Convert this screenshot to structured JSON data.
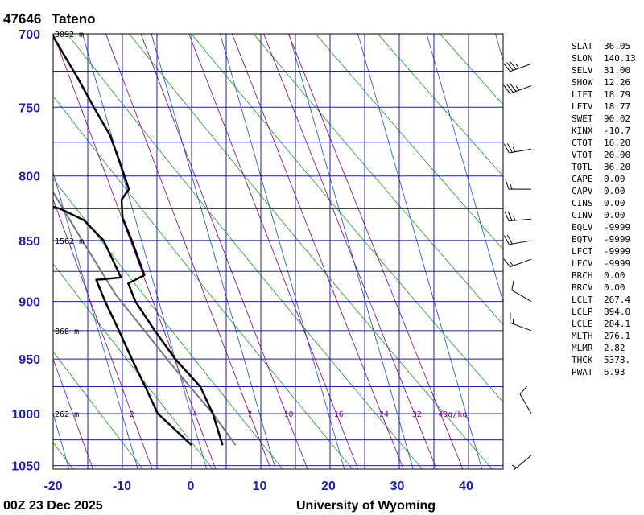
{
  "header": {
    "station": "47646",
    "name": "Tateno"
  },
  "footer": {
    "time": "00Z 23 Dec 2025",
    "source": "University of Wyoming"
  },
  "chart_data": {
    "type": "skew-t log-p",
    "pressure_range": [
      1050,
      700
    ],
    "temperature_range": [
      -20,
      45
    ],
    "pressure_ticks": [
      700,
      750,
      800,
      850,
      900,
      950,
      1000,
      1050
    ],
    "temperature_ticks": [
      -20,
      -10,
      0,
      10,
      20,
      30,
      40
    ],
    "height_labels": [
      {
        "p": 1000,
        "label": "262 m"
      },
      {
        "p": 925,
        "label": "868 m"
      },
      {
        "p": 850,
        "label": "1562 m"
      },
      {
        "p": 700,
        "label": "3092 m"
      }
    ],
    "mixing_ratio_labels": [
      "2",
      "4",
      "7",
      "10",
      "16",
      "24",
      "32",
      "40g/kg"
    ],
    "temperature_profile": [
      {
        "p": 1030,
        "t": 3.3
      },
      {
        "p": 1000,
        "t": 3.2
      },
      {
        "p": 975,
        "t": 2.5
      },
      {
        "p": 950,
        "t": 0.0
      },
      {
        "p": 925,
        "t": -1.8
      },
      {
        "p": 900,
        "t": -3.4
      },
      {
        "p": 885,
        "t": -3.7
      },
      {
        "p": 878,
        "t": -1.0
      },
      {
        "p": 850,
        "t": -1.4
      },
      {
        "p": 832,
        "t": -1.8
      },
      {
        "p": 818,
        "t": -1.2
      },
      {
        "p": 810,
        "t": 0.3
      },
      {
        "p": 790,
        "t": 0.1
      },
      {
        "p": 770,
        "t": -0.2
      },
      {
        "p": 750,
        "t": -1.4
      },
      {
        "p": 730,
        "t": -2.5
      },
      {
        "p": 700,
        "t": -4.5
      }
    ],
    "dewpoint_profile": [
      {
        "p": 1030,
        "t": -1.2
      },
      {
        "p": 1000,
        "t": -4.8
      },
      {
        "p": 975,
        "t": -5.5
      },
      {
        "p": 950,
        "t": -6.3
      },
      {
        "p": 925,
        "t": -7.0
      },
      {
        "p": 900,
        "t": -7.8
      },
      {
        "p": 882,
        "t": -8.2
      },
      {
        "p": 880,
        "t": -4.5
      },
      {
        "p": 850,
        "t": -5.5
      },
      {
        "p": 834,
        "t": -7.5
      },
      {
        "p": 825,
        "t": -10.5
      },
      {
        "p": 818,
        "t": -14.5
      },
      {
        "p": 815,
        "t": -20.0
      }
    ],
    "parcel_path": [
      {
        "p": 1030,
        "t": 5.2
      },
      {
        "p": 1000,
        "t": 3.2
      },
      {
        "p": 975,
        "t": 1.0
      },
      {
        "p": 950,
        "t": -1.2
      },
      {
        "p": 925,
        "t": -3.3
      },
      {
        "p": 894,
        "t": -6.0
      },
      {
        "p": 850,
        "t": -8.6
      },
      {
        "p": 800,
        "t": -11.6
      },
      {
        "p": 750,
        "t": -15.0
      },
      {
        "p": 700,
        "t": -18.8
      }
    ],
    "wind_barbs": [
      {
        "p": 1040,
        "dir": 230,
        "kt": 5
      },
      {
        "p": 1000,
        "dir": 330,
        "kt": 10
      },
      {
        "p": 925,
        "dir": 290,
        "kt": 15
      },
      {
        "p": 900,
        "dir": 300,
        "kt": 10
      },
      {
        "p": 865,
        "dir": 250,
        "kt": 15
      },
      {
        "p": 850,
        "dir": 260,
        "kt": 20
      },
      {
        "p": 833,
        "dir": 265,
        "kt": 25
      },
      {
        "p": 810,
        "dir": 270,
        "kt": 15
      },
      {
        "p": 780,
        "dir": 260,
        "kt": 25
      },
      {
        "p": 735,
        "dir": 250,
        "kt": 35
      },
      {
        "p": 720,
        "dir": 250,
        "kt": 35
      }
    ]
  },
  "indices": [
    {
      "key": "SLAT",
      "value": "36.05"
    },
    {
      "key": "SLON",
      "value": "140.13"
    },
    {
      "key": "SELV",
      "value": "31.00"
    },
    {
      "key": "SHOW",
      "value": "12.26"
    },
    {
      "key": "LIFT",
      "value": "18.79"
    },
    {
      "key": "LFTV",
      "value": "18.77"
    },
    {
      "key": "SWET",
      "value": "90.02"
    },
    {
      "key": "KINX",
      "value": "-10.7"
    },
    {
      "key": "CTOT",
      "value": "16.20"
    },
    {
      "key": "VTOT",
      "value": "20.00"
    },
    {
      "key": "TOTL",
      "value": "36.20"
    },
    {
      "key": "CAPE",
      "value": "0.00"
    },
    {
      "key": "CAPV",
      "value": "0.00"
    },
    {
      "key": "CINS",
      "value": "0.00"
    },
    {
      "key": "CINV",
      "value": "0.00"
    },
    {
      "key": "EQLV",
      "value": "-9999"
    },
    {
      "key": "EQTV",
      "value": "-9999"
    },
    {
      "key": "LFCT",
      "value": "-9999"
    },
    {
      "key": "LFCV",
      "value": "-9999"
    },
    {
      "key": "BRCH",
      "value": "0.00"
    },
    {
      "key": "BRCV",
      "value": "0.00"
    },
    {
      "key": "LCLT",
      "value": "267.4"
    },
    {
      "key": "LCLP",
      "value": "894.0"
    },
    {
      "key": "LCLE",
      "value": "284.1"
    },
    {
      "key": "MLTH",
      "value": "276.1"
    },
    {
      "key": "MLMR",
      "value": "2.82"
    },
    {
      "key": "THCK",
      "value": "5378."
    },
    {
      "key": "PWAT",
      "value": "6.93"
    }
  ]
}
